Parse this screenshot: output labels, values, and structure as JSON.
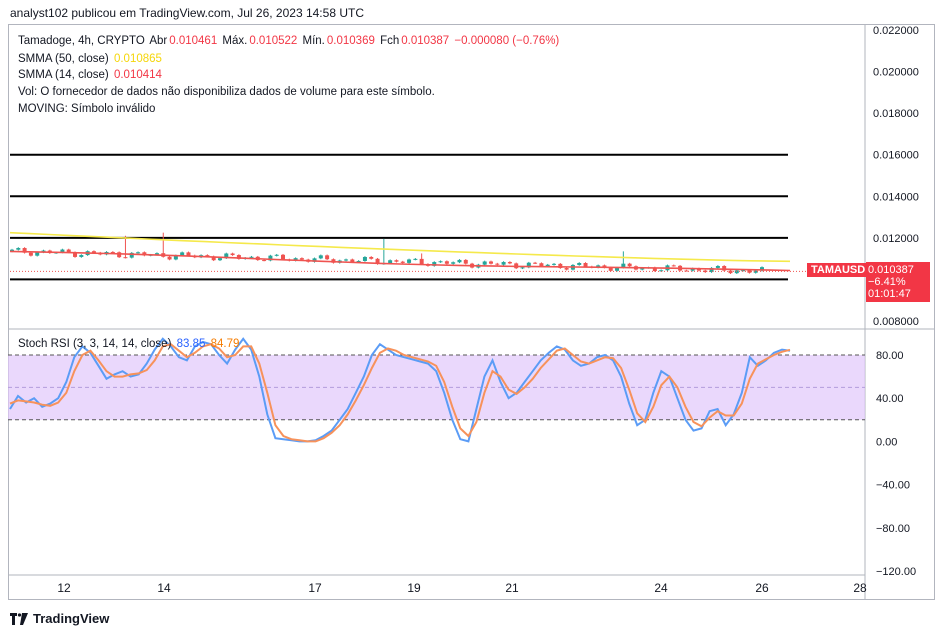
{
  "header": {
    "publisher_text": "analyst102 publicou em TradingView.com, Jul 26, 2023 14:58 UTC"
  },
  "legend": {
    "symbol_line": "Tamadoge, 4h, CRYPTO",
    "open_label": "Abr",
    "open_value": "0.010461",
    "high_label": "Máx.",
    "high_value": "0.010522",
    "low_label": "Mín.",
    "low_value": "0.010369",
    "close_label": "Fch",
    "close_value": "0.010387",
    "change_value": "−0.000080 (−0.76%)",
    "sma50_label": "SMMA (50, close)",
    "sma50_value": "0.010865",
    "sma14_label": "SMMA (14, close)",
    "sma14_value": "0.010414",
    "vol_text": "Vol: O fornecedor de dados não disponibiliza dados de volume para este símbolo.",
    "moving_text": "MOVING: Símbolo inválido"
  },
  "stoch_legend": {
    "label": "Stoch RSI (3, 3, 14, 14, close)",
    "k_value": "83.85",
    "d_value": "84.79"
  },
  "price_axis": {
    "ticks": [
      "0.022000",
      "0.020000",
      "0.018000",
      "0.016000",
      "0.014000",
      "0.012000",
      "0.008000"
    ],
    "current_price": "0.010387",
    "change_pct": "−6.41%",
    "countdown": "01:01:47",
    "symbol_tag": "TAMAUSD"
  },
  "stoch_axis": {
    "ticks": [
      "80.00",
      "40.00",
      "0.00",
      "−40.00",
      "−80.00",
      "−120.00"
    ]
  },
  "time_axis": {
    "ticks": [
      "12",
      "14",
      "17",
      "19",
      "21",
      "24",
      "26",
      "28"
    ]
  },
  "footer": {
    "brand": "TradingView"
  },
  "colors": {
    "up": "#26a69a",
    "down": "#ef5350",
    "sma50": "#f5e94b",
    "sma14": "#ef5350",
    "stoch_k": "#5b9cf6",
    "stoch_d": "#f7925b",
    "band": "#e1c8fb"
  },
  "chart_data": [
    {
      "type": "candlestick",
      "title": "Tamadoge, 4h, CRYPTO",
      "ylim": [
        0.0075,
        0.0222
      ],
      "horizontal_levels": [
        0.016,
        0.014,
        0.012,
        0.01
      ],
      "current_price": 0.010387,
      "x_ticks": [
        "12",
        "14",
        "17",
        "19",
        "21",
        "24",
        "26",
        "28"
      ],
      "series": [
        {
          "name": "SMMA (50, close)",
          "values_start_end": [
            0.01225,
            0.01087
          ]
        },
        {
          "name": "SMMA (14, close)",
          "values_start_end": [
            0.01135,
            0.01041
          ]
        }
      ],
      "wick_spikes": [
        0.0121,
        0.01225,
        0.01195,
        0.01125,
        0.01135
      ]
    },
    {
      "type": "line",
      "title": "Stoch RSI (3, 3, 14, 14, close)",
      "ylim": [
        -120,
        100
      ],
      "band": [
        20,
        80
      ],
      "midline": 50,
      "series": [
        {
          "name": "K",
          "last": 83.85,
          "values": [
            30,
            42,
            36,
            40,
            32,
            35,
            40,
            55,
            78,
            88,
            82,
            70,
            58,
            62,
            65,
            60,
            62,
            72,
            85,
            95,
            88,
            78,
            75,
            88,
            92,
            90,
            80,
            72,
            85,
            95,
            85,
            60,
            25,
            3,
            2,
            1,
            0,
            0,
            1,
            5,
            10,
            20,
            30,
            45,
            60,
            80,
            90,
            85,
            80,
            78,
            76,
            74,
            72,
            65,
            45,
            20,
            2,
            0,
            30,
            60,
            75,
            55,
            40,
            45,
            55,
            65,
            75,
            82,
            88,
            85,
            75,
            70,
            72,
            78,
            80,
            75,
            60,
            35,
            15,
            20,
            45,
            65,
            60,
            40,
            20,
            10,
            12,
            28,
            30,
            15,
            25,
            45,
            78,
            70,
            75,
            82,
            85,
            84
          ]
        },
        {
          "name": "D",
          "last": 84.79,
          "values": [
            35,
            38,
            37,
            36,
            34,
            33,
            36,
            45,
            65,
            80,
            84,
            75,
            65,
            60,
            60,
            62,
            63,
            66,
            75,
            88,
            90,
            84,
            78,
            82,
            88,
            90,
            86,
            78,
            80,
            88,
            88,
            72,
            45,
            15,
            5,
            2,
            1,
            0,
            0,
            3,
            8,
            15,
            25,
            38,
            52,
            68,
            82,
            86,
            84,
            80,
            78,
            76,
            74,
            70,
            55,
            32,
            12,
            5,
            18,
            45,
            65,
            60,
            48,
            44,
            50,
            58,
            68,
            76,
            84,
            86,
            80,
            74,
            72,
            75,
            78,
            77,
            68,
            48,
            26,
            18,
            32,
            52,
            60,
            50,
            32,
            18,
            14,
            22,
            28,
            24,
            24,
            35,
            58,
            72,
            76,
            80,
            83,
            84.79
          ]
        }
      ]
    }
  ]
}
